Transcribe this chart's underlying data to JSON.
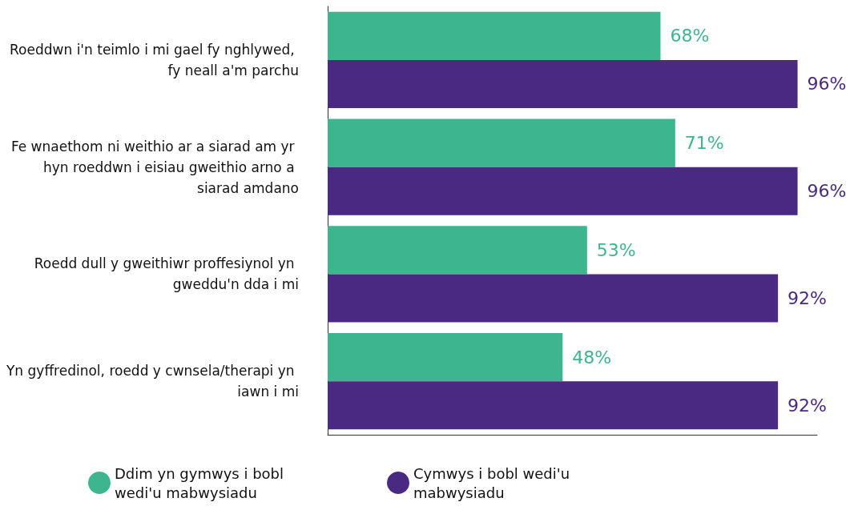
{
  "chart_data": {
    "type": "bar",
    "orientation": "horizontal",
    "categories": [
      "Roeddwn i'n teimlo i mi gael fy nghlywed, fy neall a'm parchu",
      "Fe wnaethom ni weithio ar a siarad am yr hyn roeddwn i eisiau gweithio arno a siarad amdano",
      "Roedd dull y gweithiwr proffesiynol yn gweddu'n dda i mi",
      "Yn gyffredinol, roedd y cwnsela/therapi yn iawn i mi"
    ],
    "series": [
      {
        "name": "Ddim yn gymwys i bobl wedi'u mabwysiadu",
        "color": "#3db58e",
        "values": [
          68,
          71,
          53,
          48
        ],
        "value_labels": [
          "68%",
          "71%",
          "53%",
          "48%"
        ]
      },
      {
        "name": "Cymwys i bobl wedi'u mabwysiadu",
        "color": "#4a2982",
        "values": [
          96,
          96,
          92,
          92
        ],
        "value_labels": [
          "96%",
          "96%",
          "92%",
          "92%"
        ]
      }
    ],
    "xlim": [
      0,
      100
    ],
    "tick_labels": "y",
    "legend": "bottom"
  }
}
